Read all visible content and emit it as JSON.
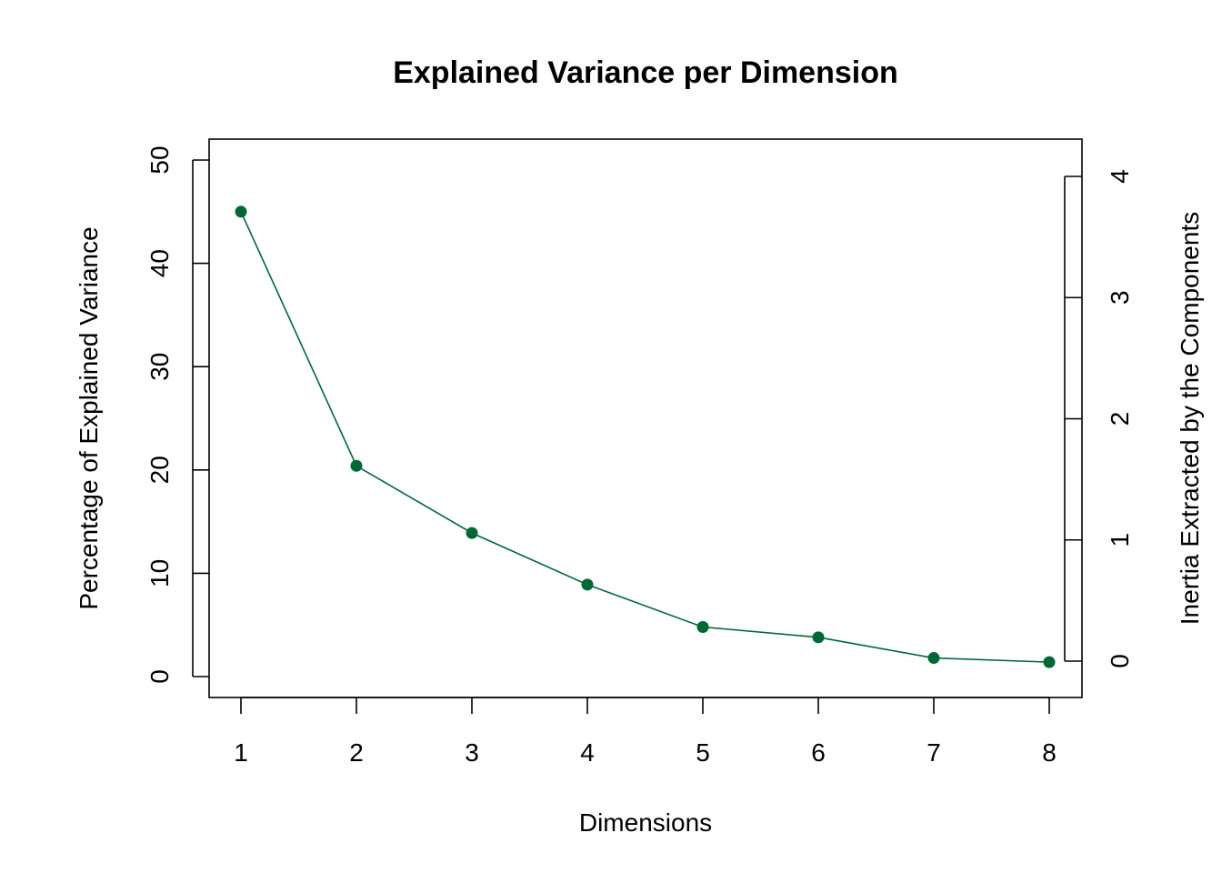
{
  "chart_data": {
    "type": "line",
    "title": "Explained Variance per Dimension",
    "xlabel": "Dimensions",
    "ylabel": "Percentage of Explained Variance",
    "y2label": "Inertia Extracted by the Components",
    "x": [
      1,
      2,
      3,
      4,
      5,
      6,
      7,
      8
    ],
    "x_ticks": [
      "1",
      "2",
      "3",
      "4",
      "5",
      "6",
      "7",
      "8"
    ],
    "values": [
      45.0,
      20.4,
      13.9,
      8.9,
      4.8,
      3.8,
      1.8,
      1.4
    ],
    "ylim": [
      -2,
      52
    ],
    "y_ticks": [
      "0",
      "10",
      "20",
      "30",
      "40",
      "50"
    ],
    "y2_range": [
      0,
      4
    ],
    "y2_ticks": [
      "0",
      "1",
      "2",
      "3",
      "4"
    ],
    "line_color": "#006837",
    "grid": false,
    "legend": "none"
  }
}
